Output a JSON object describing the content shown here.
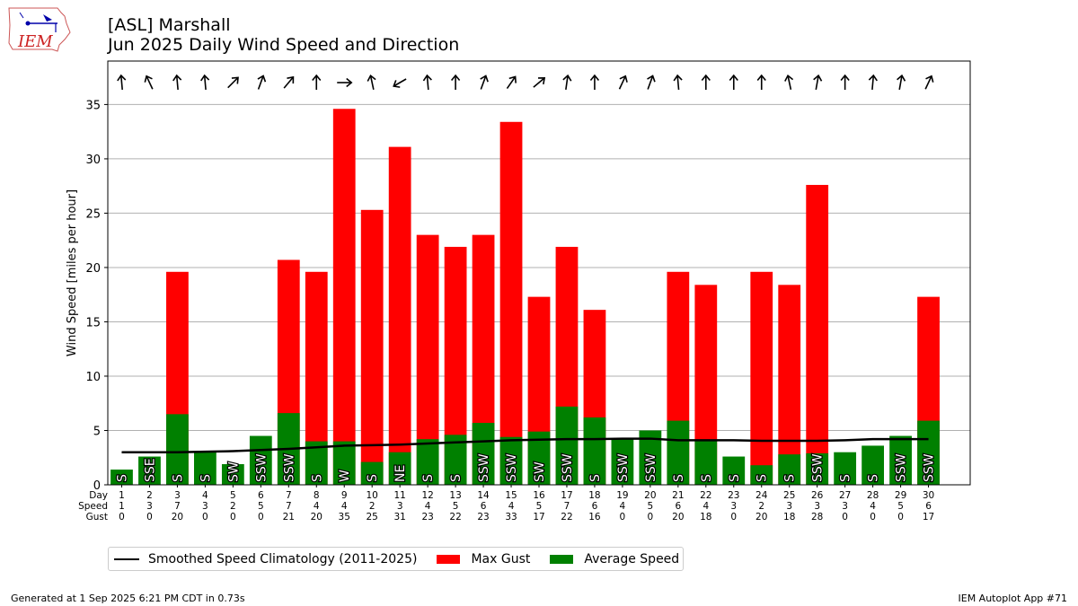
{
  "header": {
    "logo_text": "IEM",
    "title_line1": "[ASL] Marshall",
    "title_line2": "Jun 2025 Daily Wind Speed and Direction"
  },
  "footer": {
    "generated": "Generated at 1 Sep 2025 6:21 PM CDT in 0.73s",
    "app": "IEM Autoplot App #71"
  },
  "legend": {
    "climo": "Smoothed Speed Climatology (2011-2025)",
    "gust": "Max Gust",
    "avg": "Average Speed"
  },
  "colors": {
    "gust": "#ff0000",
    "avg": "#008000",
    "climo": "#000000",
    "grid": "#b0b0b0",
    "logo": "#cc2222"
  },
  "chart_data": {
    "type": "bar",
    "title": "[ASL] Marshall\nJun 2025 Daily Wind Speed and Direction",
    "ylabel": "Wind Speed [miles per hour]",
    "ylim": [
      0,
      39
    ],
    "yticks": [
      0,
      5,
      10,
      15,
      20,
      25,
      30,
      35
    ],
    "grid": true,
    "row_labels": [
      "Day",
      "Speed",
      "Gust"
    ],
    "days": [
      1,
      2,
      3,
      4,
      5,
      6,
      7,
      8,
      9,
      10,
      11,
      12,
      13,
      14,
      15,
      16,
      17,
      18,
      19,
      20,
      21,
      22,
      23,
      24,
      25,
      26,
      27,
      28,
      29,
      30
    ],
    "speed_labels": [
      1,
      3,
      7,
      3,
      2,
      5,
      7,
      4,
      4,
      2,
      3,
      4,
      5,
      6,
      4,
      5,
      7,
      6,
      4,
      5,
      6,
      4,
      3,
      2,
      3,
      3,
      3,
      4,
      5,
      6
    ],
    "gust_labels": [
      0,
      0,
      20,
      0,
      0,
      0,
      21,
      20,
      35,
      25,
      31,
      23,
      22,
      23,
      33,
      17,
      22,
      16,
      0,
      0,
      20,
      18,
      0,
      20,
      18,
      28,
      0,
      0,
      0,
      17
    ],
    "series": [
      {
        "name": "Average Speed",
        "values": [
          1.4,
          2.6,
          6.5,
          3.0,
          1.9,
          4.5,
          6.6,
          4.0,
          4.0,
          2.1,
          3.0,
          4.2,
          4.6,
          5.7,
          4.4,
          4.9,
          7.2,
          6.2,
          4.3,
          5.0,
          5.9,
          4.1,
          2.6,
          1.8,
          2.8,
          2.9,
          3.0,
          3.6,
          4.5,
          5.9
        ]
      },
      {
        "name": "Max Gust",
        "values": [
          null,
          null,
          19.6,
          null,
          null,
          null,
          20.7,
          19.6,
          34.6,
          25.3,
          31.1,
          23.0,
          21.9,
          23.0,
          33.4,
          17.3,
          21.9,
          16.1,
          null,
          null,
          19.6,
          18.4,
          null,
          19.6,
          18.4,
          27.6,
          null,
          null,
          null,
          17.3
        ]
      },
      {
        "name": "Smoothed Speed Climatology (2011-2025)",
        "values": [
          3.0,
          3.0,
          3.0,
          3.05,
          3.1,
          3.2,
          3.3,
          3.45,
          3.6,
          3.65,
          3.7,
          3.8,
          3.9,
          4.0,
          4.1,
          4.15,
          4.2,
          4.2,
          4.25,
          4.25,
          4.1,
          4.1,
          4.1,
          4.05,
          4.05,
          4.05,
          4.1,
          4.2,
          4.2,
          4.2
        ]
      }
    ],
    "direction_labels": [
      "S",
      "SSE",
      "S",
      "S",
      "SW",
      "SSW",
      "SSW",
      "S",
      "W",
      "S",
      "NE",
      "S",
      "S",
      "SSW",
      "SSW",
      "SW",
      "SSW",
      "S",
      "SSW",
      "SSW",
      "S",
      "S",
      "S",
      "S",
      "S",
      "SSW",
      "S",
      "S",
      "SSW",
      "SSW"
    ],
    "arrow_angles_deg": [
      -5,
      -25,
      -5,
      -5,
      45,
      20,
      40,
      0,
      90,
      -12,
      -120,
      -5,
      0,
      20,
      35,
      50,
      8,
      0,
      25,
      20,
      -5,
      0,
      0,
      0,
      -12,
      10,
      0,
      5,
      10,
      25
    ]
  }
}
